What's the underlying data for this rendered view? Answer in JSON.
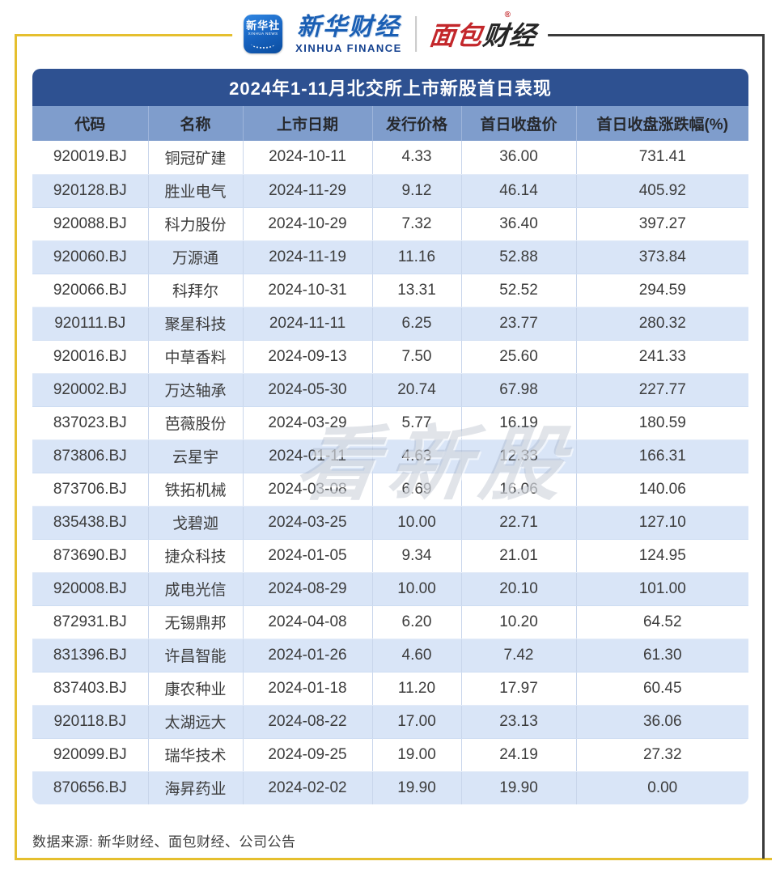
{
  "brand": {
    "xinhua_news_icon_cn": "新华社",
    "xinhua_news_icon_en": "XINHUA NEWS",
    "xinhua_finance_cn": "新华财经",
    "xinhua_finance_en": "XINHUA FINANCE",
    "bread_finance_part1": "面包",
    "bread_finance_part2": "财经",
    "registered_mark": "®"
  },
  "chart_data": {
    "type": "table",
    "title": "2024年1-11月北交所上市新股首日表现",
    "columns": [
      "代码",
      "名称",
      "上市日期",
      "发行价格",
      "首日收盘价",
      "首日收盘涨跌幅(%)"
    ],
    "rows": [
      [
        "920019.BJ",
        "铜冠矿建",
        "2024-10-11",
        "4.33",
        "36.00",
        "731.41"
      ],
      [
        "920128.BJ",
        "胜业电气",
        "2024-11-29",
        "9.12",
        "46.14",
        "405.92"
      ],
      [
        "920088.BJ",
        "科力股份",
        "2024-10-29",
        "7.32",
        "36.40",
        "397.27"
      ],
      [
        "920060.BJ",
        "万源通",
        "2024-11-19",
        "11.16",
        "52.88",
        "373.84"
      ],
      [
        "920066.BJ",
        "科拜尔",
        "2024-10-31",
        "13.31",
        "52.52",
        "294.59"
      ],
      [
        "920111.BJ",
        "聚星科技",
        "2024-11-11",
        "6.25",
        "23.77",
        "280.32"
      ],
      [
        "920016.BJ",
        "中草香料",
        "2024-09-13",
        "7.50",
        "25.60",
        "241.33"
      ],
      [
        "920002.BJ",
        "万达轴承",
        "2024-05-30",
        "20.74",
        "67.98",
        "227.77"
      ],
      [
        "837023.BJ",
        "芭薇股份",
        "2024-03-29",
        "5.77",
        "16.19",
        "180.59"
      ],
      [
        "873806.BJ",
        "云星宇",
        "2024-01-11",
        "4.63",
        "12.33",
        "166.31"
      ],
      [
        "873706.BJ",
        "铁拓机械",
        "2024-03-08",
        "6.69",
        "16.06",
        "140.06"
      ],
      [
        "835438.BJ",
        "戈碧迦",
        "2024-03-25",
        "10.00",
        "22.71",
        "127.10"
      ],
      [
        "873690.BJ",
        "捷众科技",
        "2024-01-05",
        "9.34",
        "21.01",
        "124.95"
      ],
      [
        "920008.BJ",
        "成电光信",
        "2024-08-29",
        "10.00",
        "20.10",
        "101.00"
      ],
      [
        "872931.BJ",
        "无锡鼎邦",
        "2024-04-08",
        "6.20",
        "10.20",
        "64.52"
      ],
      [
        "831396.BJ",
        "许昌智能",
        "2024-01-26",
        "4.60",
        "7.42",
        "61.30"
      ],
      [
        "837403.BJ",
        "康农种业",
        "2024-01-18",
        "11.20",
        "17.97",
        "60.45"
      ],
      [
        "920118.BJ",
        "太湖远大",
        "2024-08-22",
        "17.00",
        "23.13",
        "36.06"
      ],
      [
        "920099.BJ",
        "瑞华技术",
        "2024-09-25",
        "19.00",
        "24.19",
        "27.32"
      ],
      [
        "870656.BJ",
        "海昇药业",
        "2024-02-02",
        "19.90",
        "19.90",
        "0.00"
      ]
    ]
  },
  "watermark": "看新股",
  "footer": {
    "source": "数据来源: 新华财经、面包财经、公司公告"
  },
  "colors": {
    "frame_gold": "#e5bf2e",
    "frame_dark": "#3b3b3b",
    "title_bg": "#2e5191",
    "header_bg": "#7f9dcc",
    "row_alt_bg": "#d9e5f7",
    "brand_blue": "#1a5fb4",
    "brand_red": "#c3272b"
  }
}
